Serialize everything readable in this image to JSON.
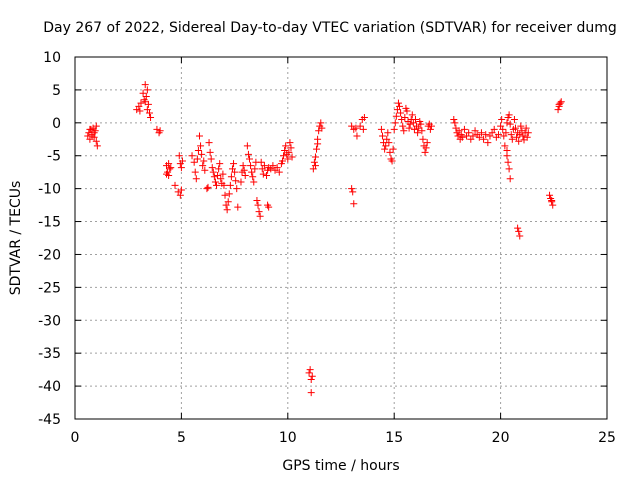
{
  "chart_data": {
    "type": "scatter",
    "title": "Day 267 of 2022, Sidereal Day-to-day VTEC variation (SDTVAR) for receiver dumg",
    "xlabel": "GPS time / hours",
    "ylabel": "SDTVAR / TECUs",
    "xlim": [
      0,
      25
    ],
    "ylim": [
      -45,
      10
    ],
    "xticks": [
      0,
      5,
      10,
      15,
      20,
      25
    ],
    "yticks": [
      10,
      5,
      0,
      -5,
      -10,
      -15,
      -20,
      -25,
      -30,
      -35,
      -40,
      -45
    ],
    "grid": true,
    "marker": "+",
    "color": "#ff0000",
    "series": [
      {
        "name": "SDTVAR",
        "points": [
          [
            0.6,
            -2.0
          ],
          [
            0.65,
            -1.5
          ],
          [
            0.7,
            -2.5
          ],
          [
            0.75,
            -1.0
          ],
          [
            0.8,
            -1.8
          ],
          [
            0.85,
            -0.8
          ],
          [
            0.9,
            -2.2
          ],
          [
            0.95,
            -1.2
          ],
          [
            1.0,
            -2.8
          ],
          [
            1.05,
            -3.5
          ],
          [
            1.0,
            -0.5
          ],
          [
            0.9,
            -1.5
          ],
          [
            0.8,
            -2.0
          ],
          [
            0.7,
            -1.0
          ],
          [
            2.9,
            2.0
          ],
          [
            3.0,
            2.5
          ],
          [
            3.05,
            1.8
          ],
          [
            3.1,
            3.0
          ],
          [
            3.2,
            4.5
          ],
          [
            3.25,
            3.5
          ],
          [
            3.3,
            5.8
          ],
          [
            3.35,
            4.0
          ],
          [
            3.4,
            5.0
          ],
          [
            3.45,
            2.8
          ],
          [
            3.5,
            1.5
          ],
          [
            3.55,
            0.8
          ],
          [
            3.4,
            2.0
          ],
          [
            3.3,
            3.2
          ],
          [
            3.85,
            -1.0
          ],
          [
            3.95,
            -1.5
          ],
          [
            4.0,
            -1.2
          ],
          [
            4.3,
            -6.5
          ],
          [
            4.35,
            -7.5
          ],
          [
            4.4,
            -8.0
          ],
          [
            4.45,
            -7.0
          ],
          [
            4.5,
            -6.8
          ],
          [
            4.4,
            -6.2
          ],
          [
            4.3,
            -7.8
          ],
          [
            4.7,
            -9.5
          ],
          [
            4.85,
            -10.5
          ],
          [
            4.95,
            -11.0
          ],
          [
            5.0,
            -10.2
          ],
          [
            4.9,
            -5.0
          ],
          [
            4.95,
            -6.2
          ],
          [
            5.0,
            -6.8
          ],
          [
            5.05,
            -5.8
          ],
          [
            5.5,
            -5.0
          ],
          [
            5.6,
            -6.0
          ],
          [
            5.65,
            -7.5
          ],
          [
            5.7,
            -8.5
          ],
          [
            5.75,
            -5.5
          ],
          [
            5.8,
            -4.2
          ],
          [
            5.85,
            -2.0
          ],
          [
            5.9,
            -3.5
          ],
          [
            5.95,
            -4.8
          ],
          [
            6.0,
            -6.5
          ],
          [
            6.05,
            -5.8
          ],
          [
            6.1,
            -7.2
          ],
          [
            6.2,
            -10.0
          ],
          [
            6.25,
            -9.8
          ],
          [
            6.3,
            -3.0
          ],
          [
            6.35,
            -4.5
          ],
          [
            6.4,
            -5.5
          ],
          [
            6.45,
            -6.8
          ],
          [
            6.5,
            -7.5
          ],
          [
            6.55,
            -8.2
          ],
          [
            6.6,
            -9.0
          ],
          [
            6.65,
            -9.5
          ],
          [
            6.7,
            -8.0
          ],
          [
            6.75,
            -7.0
          ],
          [
            6.8,
            -6.2
          ],
          [
            6.85,
            -8.5
          ],
          [
            6.9,
            -9.2
          ],
          [
            6.95,
            -7.8
          ],
          [
            7.0,
            -9.5
          ],
          [
            7.05,
            -11.0
          ],
          [
            7.1,
            -12.5
          ],
          [
            7.15,
            -13.2
          ],
          [
            7.2,
            -12.0
          ],
          [
            7.25,
            -10.8
          ],
          [
            7.3,
            -9.5
          ],
          [
            7.35,
            -8.2
          ],
          [
            7.4,
            -7.0
          ],
          [
            7.45,
            -6.2
          ],
          [
            7.5,
            -7.5
          ],
          [
            7.55,
            -8.8
          ],
          [
            7.6,
            -10.0
          ],
          [
            7.65,
            -12.8
          ],
          [
            7.8,
            -9.0
          ],
          [
            7.85,
            -7.5
          ],
          [
            7.9,
            -6.5
          ],
          [
            7.95,
            -7.2
          ],
          [
            8.0,
            -8.0
          ],
          [
            8.1,
            -3.5
          ],
          [
            8.15,
            -4.8
          ],
          [
            8.2,
            -5.5
          ],
          [
            8.25,
            -6.5
          ],
          [
            8.3,
            -7.5
          ],
          [
            8.35,
            -8.2
          ],
          [
            8.4,
            -9.0
          ],
          [
            8.45,
            -7.0
          ],
          [
            8.5,
            -6.0
          ],
          [
            8.55,
            -11.8
          ],
          [
            8.6,
            -12.5
          ],
          [
            8.65,
            -13.5
          ],
          [
            8.7,
            -14.2
          ],
          [
            8.75,
            -6.0
          ],
          [
            8.8,
            -7.0
          ],
          [
            8.85,
            -7.8
          ],
          [
            8.9,
            -6.5
          ],
          [
            9.0,
            -8.0
          ],
          [
            9.05,
            -7.2
          ],
          [
            9.1,
            -6.8
          ],
          [
            9.05,
            -12.5
          ],
          [
            9.1,
            -12.8
          ],
          [
            9.2,
            -7.0
          ],
          [
            9.3,
            -6.5
          ],
          [
            9.4,
            -7.2
          ],
          [
            9.5,
            -6.8
          ],
          [
            9.6,
            -7.5
          ],
          [
            9.7,
            -6.2
          ],
          [
            9.75,
            -5.8
          ],
          [
            9.8,
            -5.0
          ],
          [
            9.85,
            -4.2
          ],
          [
            9.9,
            -3.5
          ],
          [
            9.95,
            -4.8
          ],
          [
            10.0,
            -5.5
          ],
          [
            10.05,
            -4.5
          ],
          [
            10.1,
            -3.0
          ],
          [
            10.15,
            -3.8
          ],
          [
            10.2,
            -5.2
          ],
          [
            11.0,
            -38.0
          ],
          [
            11.05,
            -37.5
          ],
          [
            11.1,
            -39.0
          ],
          [
            11.1,
            -41.0
          ],
          [
            11.15,
            -38.5
          ],
          [
            11.2,
            -7.0
          ],
          [
            11.25,
            -6.0
          ],
          [
            11.3,
            -5.2
          ],
          [
            11.35,
            -4.0
          ],
          [
            11.4,
            -2.5
          ],
          [
            11.45,
            -1.2
          ],
          [
            11.5,
            -0.5
          ],
          [
            11.55,
            0.0
          ],
          [
            11.6,
            -0.8
          ],
          [
            11.4,
            -3.2
          ],
          [
            11.3,
            -6.5
          ],
          [
            13.0,
            -10.0
          ],
          [
            13.05,
            -10.5
          ],
          [
            13.1,
            -12.3
          ],
          [
            13.0,
            -0.5
          ],
          [
            13.1,
            -1.0
          ],
          [
            13.2,
            -0.8
          ],
          [
            13.25,
            -2.0
          ],
          [
            13.4,
            -0.5
          ],
          [
            13.5,
            0.5
          ],
          [
            13.6,
            0.8
          ],
          [
            13.55,
            -1.0
          ],
          [
            14.4,
            -1.0
          ],
          [
            14.45,
            -2.0
          ],
          [
            14.5,
            -3.0
          ],
          [
            14.55,
            -4.0
          ],
          [
            14.6,
            -3.5
          ],
          [
            14.65,
            -2.5
          ],
          [
            14.7,
            -1.5
          ],
          [
            14.75,
            -3.0
          ],
          [
            14.8,
            -4.5
          ],
          [
            14.85,
            -5.5
          ],
          [
            14.9,
            -5.8
          ],
          [
            14.95,
            -4.0
          ],
          [
            15.0,
            -1.0
          ],
          [
            15.05,
            0.0
          ],
          [
            15.1,
            1.0
          ],
          [
            15.15,
            2.0
          ],
          [
            15.2,
            3.0
          ],
          [
            15.25,
            2.5
          ],
          [
            15.3,
            1.5
          ],
          [
            15.35,
            0.5
          ],
          [
            15.4,
            -0.5
          ],
          [
            15.45,
            -1.2
          ],
          [
            15.5,
            0.8
          ],
          [
            15.55,
            2.2
          ],
          [
            15.6,
            1.8
          ],
          [
            15.65,
            0.2
          ],
          [
            15.7,
            -0.8
          ],
          [
            15.75,
            -0.2
          ],
          [
            15.8,
            0.5
          ],
          [
            15.85,
            1.2
          ],
          [
            15.9,
            0.0
          ],
          [
            15.95,
            -1.0
          ],
          [
            16.0,
            0.5
          ],
          [
            16.05,
            -0.5
          ],
          [
            16.1,
            -1.5
          ],
          [
            16.15,
            -0.8
          ],
          [
            16.2,
            0.2
          ],
          [
            16.25,
            -0.2
          ],
          [
            16.3,
            -1.2
          ],
          [
            16.35,
            -2.5
          ],
          [
            16.4,
            -3.5
          ],
          [
            16.45,
            -4.5
          ],
          [
            16.5,
            -3.8
          ],
          [
            16.55,
            -3.0
          ],
          [
            16.6,
            -0.5
          ],
          [
            16.65,
            -0.2
          ],
          [
            16.7,
            -1.0
          ],
          [
            16.75,
            -0.5
          ],
          [
            17.8,
            0.5
          ],
          [
            17.85,
            0.0
          ],
          [
            17.9,
            -0.8
          ],
          [
            17.95,
            -1.5
          ],
          [
            18.0,
            -2.0
          ],
          [
            18.05,
            -1.2
          ],
          [
            18.1,
            -2.5
          ],
          [
            18.15,
            -1.8
          ],
          [
            18.2,
            -2.2
          ],
          [
            18.3,
            -1.0
          ],
          [
            18.4,
            -2.0
          ],
          [
            18.5,
            -1.5
          ],
          [
            18.6,
            -2.5
          ],
          [
            18.7,
            -2.0
          ],
          [
            18.8,
            -1.2
          ],
          [
            18.9,
            -1.8
          ],
          [
            19.0,
            -2.2
          ],
          [
            19.1,
            -1.5
          ],
          [
            19.2,
            -2.5
          ],
          [
            19.3,
            -1.8
          ],
          [
            19.4,
            -3.0
          ],
          [
            19.5,
            -2.0
          ],
          [
            19.6,
            -1.5
          ],
          [
            19.7,
            -1.0
          ],
          [
            19.8,
            -2.2
          ],
          [
            19.9,
            -1.8
          ],
          [
            20.0,
            -0.5
          ],
          [
            20.05,
            0.5
          ],
          [
            20.1,
            -1.0
          ],
          [
            20.15,
            -2.0
          ],
          [
            20.2,
            -3.5
          ],
          [
            20.25,
            -1.5
          ],
          [
            20.3,
            0.0
          ],
          [
            20.35,
            0.8
          ],
          [
            20.4,
            1.2
          ],
          [
            20.45,
            -0.2
          ],
          [
            20.5,
            -1.8
          ],
          [
            20.55,
            -2.5
          ],
          [
            20.6,
            -1.0
          ],
          [
            20.65,
            0.5
          ],
          [
            20.7,
            -0.8
          ],
          [
            20.75,
            -2.2
          ],
          [
            20.8,
            -1.5
          ],
          [
            20.85,
            -2.8
          ],
          [
            20.9,
            -1.8
          ],
          [
            20.95,
            -0.5
          ],
          [
            21.0,
            -1.2
          ],
          [
            21.05,
            -2.0
          ],
          [
            21.1,
            -2.6
          ],
          [
            21.15,
            -1.5
          ],
          [
            21.2,
            -0.8
          ],
          [
            21.25,
            -2.2
          ],
          [
            21.3,
            -1.5
          ],
          [
            20.3,
            -5.0
          ],
          [
            20.35,
            -6.0
          ],
          [
            20.4,
            -7.0
          ],
          [
            20.45,
            -8.5
          ],
          [
            20.3,
            -4.2
          ],
          [
            20.8,
            -16.0
          ],
          [
            20.85,
            -16.5
          ],
          [
            20.9,
            -17.2
          ],
          [
            22.3,
            -11.0
          ],
          [
            22.35,
            -11.5
          ],
          [
            22.4,
            -12.0
          ],
          [
            22.45,
            -12.5
          ],
          [
            22.4,
            -11.8
          ],
          [
            22.7,
            2.0
          ],
          [
            22.75,
            2.5
          ],
          [
            22.8,
            3.0
          ],
          [
            22.85,
            3.2
          ],
          [
            22.75,
            2.8
          ]
        ]
      }
    ]
  }
}
